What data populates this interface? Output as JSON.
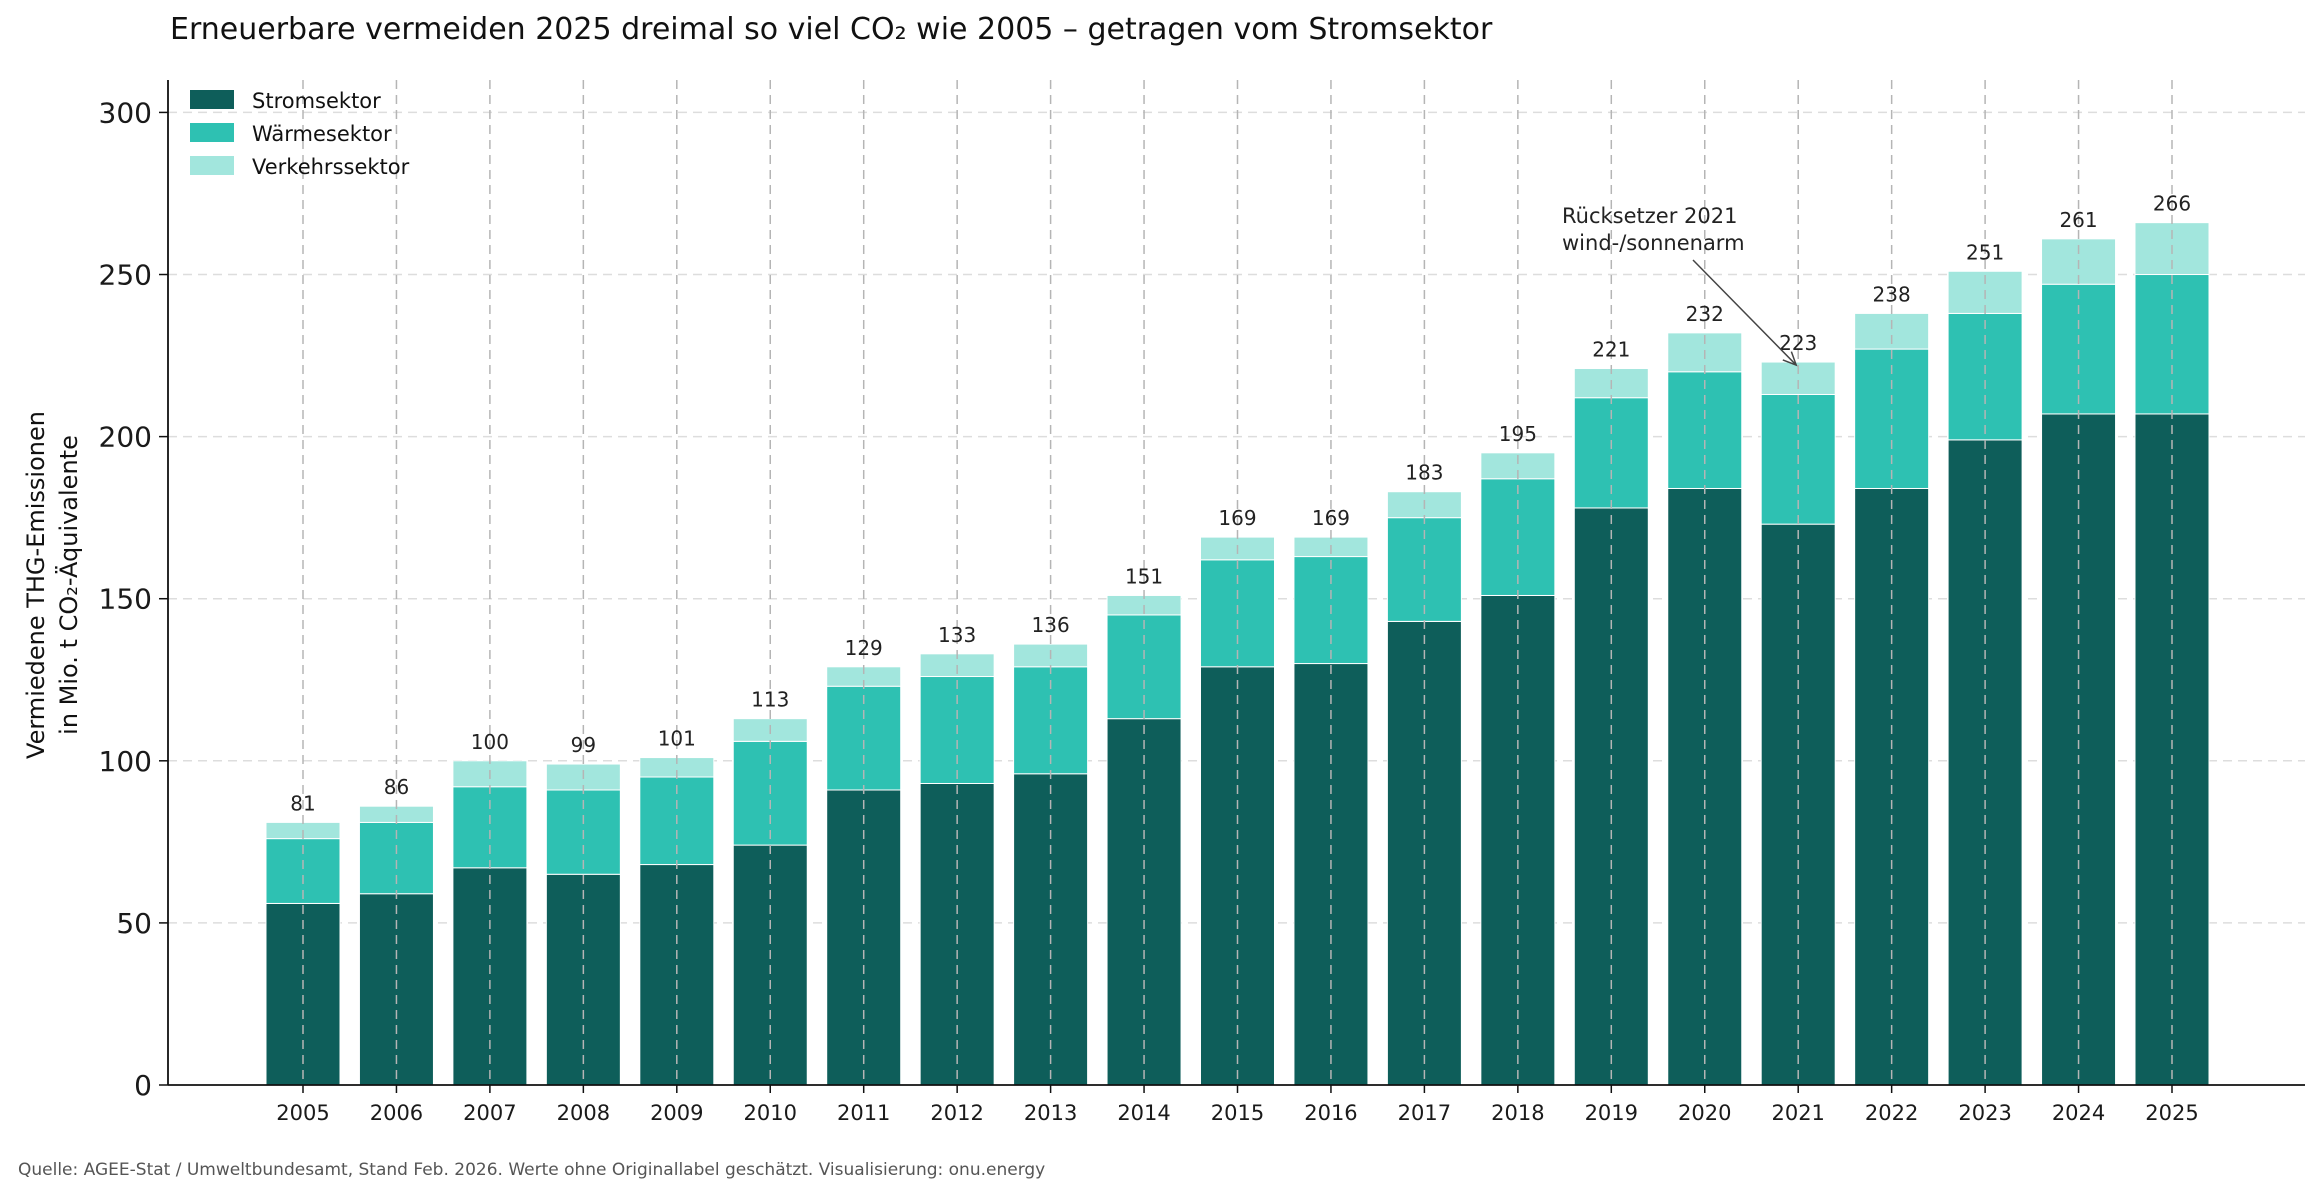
{
  "chart_data": {
    "type": "bar",
    "stacked": true,
    "title_parts": [
      "Erneuerbare vermeiden 2025 dreimal so viel CO",
      "₂",
      " wie 2005 – getragen vom Stromsektor"
    ],
    "ylabel_lines": [
      "Vermiedene THG-Emissionen",
      "in Mio. t CO₂-Äquivalente"
    ],
    "xlabel": "",
    "ylim": [
      0,
      310
    ],
    "yticks": [
      0,
      50,
      100,
      150,
      200,
      250,
      300
    ],
    "categories": [
      "2005",
      "2006",
      "2007",
      "2008",
      "2009",
      "2010",
      "2011",
      "2012",
      "2013",
      "2014",
      "2015",
      "2016",
      "2017",
      "2018",
      "2019",
      "2020",
      "2021",
      "2022",
      "2023",
      "2024",
      "2025"
    ],
    "series": [
      {
        "name": "Stromsektor",
        "color": "#0e5e5a",
        "values": [
          56,
          59,
          67,
          65,
          68,
          74,
          91,
          93,
          96,
          113,
          129,
          130,
          143,
          151,
          178,
          184,
          173,
          184,
          199,
          207,
          207
        ]
      },
      {
        "name": "Wärmesektor",
        "color": "#2ec1b2",
        "values": [
          20,
          22,
          25,
          26,
          27,
          32,
          32,
          33,
          33,
          32,
          33,
          33,
          32,
          36,
          34,
          36,
          40,
          43,
          39,
          40,
          43
        ]
      },
      {
        "name": "Verkehrssektor",
        "color": "#a2e6dd",
        "values": [
          5,
          5,
          8,
          8,
          6,
          7,
          6,
          7,
          7,
          6,
          7,
          6,
          8,
          8,
          9,
          12,
          10,
          11,
          13,
          14,
          16
        ]
      }
    ],
    "totals": [
      81,
      86,
      100,
      99,
      101,
      113,
      129,
      133,
      136,
      151,
      169,
      169,
      183,
      195,
      221,
      232,
      223,
      238,
      251,
      261,
      266
    ],
    "legend_position": "top-left",
    "grid": {
      "horizontal": true,
      "vertical": true
    },
    "annotation": {
      "lines": [
        "Rücksetzer 2021",
        "wind-/sonnenarm"
      ],
      "target_category": "2021"
    },
    "source": "Quelle: AGEE-Stat / Umweltbundesamt, Stand Feb. 2026. Werte ohne Originallabel geschätzt. Visualisierung: onu.energy"
  }
}
